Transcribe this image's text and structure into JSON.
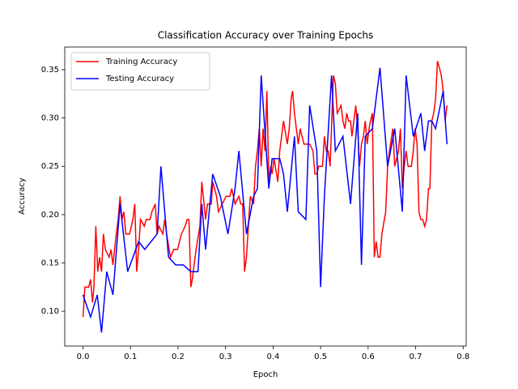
{
  "chart_data": {
    "type": "line",
    "title": "Classification Accuracy over Training Epochs",
    "x_label": "Epoch",
    "y_label": "Accuracy",
    "xlim": [
      -0.0384,
      0.8064
    ],
    "ylim": [
      0.064,
      0.3735
    ],
    "xticks": [
      {
        "value": 0,
        "label": "0.0"
      },
      0.1,
      0.2,
      0.3,
      0.4,
      0.5,
      0.6,
      0.7,
      0.8
    ],
    "yticks": [
      {
        "value": 0.1,
        "label": "0.10"
      },
      0.15,
      {
        "value": 0.2,
        "label": "0.20"
      },
      0.25,
      {
        "value": 0.3,
        "label": "0.30"
      },
      0.35
    ],
    "legend": "upper left",
    "series": [
      {
        "name": "Training Accuracy",
        "color": "#ff0000",
        "x": [
          0,
          0.004,
          0.012,
          0.016,
          0.02,
          0.023,
          0.027,
          0.031,
          0.035,
          0.039,
          0.043,
          0.047,
          0.055,
          0.059,
          0.063,
          0.07,
          0.074,
          0.078,
          0.082,
          0.086,
          0.09,
          0.098,
          0.105,
          0.109,
          0.113,
          0.117,
          0.121,
          0.129,
          0.133,
          0.141,
          0.145,
          0.152,
          0.156,
          0.16,
          0.168,
          0.172,
          0.176,
          0.184,
          0.191,
          0.199,
          0.207,
          0.215,
          0.219,
          0.223,
          0.227,
          0.23,
          0.238,
          0.246,
          0.25,
          0.258,
          0.262,
          0.27,
          0.273,
          0.281,
          0.285,
          0.293,
          0.301,
          0.309,
          0.313,
          0.32,
          0.328,
          0.332,
          0.336,
          0.34,
          0.344,
          0.348,
          0.352,
          0.359,
          0.363,
          0.367,
          0.371,
          0.375,
          0.379,
          0.383,
          0.387,
          0.391,
          0.395,
          0.398,
          0.402,
          0.41,
          0.414,
          0.418,
          0.422,
          0.43,
          0.434,
          0.438,
          0.441,
          0.445,
          0.449,
          0.453,
          0.457,
          0.465,
          0.473,
          0.477,
          0.484,
          0.488,
          0.492,
          0.496,
          0.504,
          0.508,
          0.512,
          0.516,
          0.52,
          0.527,
          0.531,
          0.535,
          0.543,
          0.547,
          0.551,
          0.555,
          0.559,
          0.563,
          0.566,
          0.574,
          0.578,
          0.582,
          0.586,
          0.59,
          0.594,
          0.598,
          0.602,
          0.605,
          0.609,
          0.613,
          0.617,
          0.621,
          0.625,
          0.629,
          0.637,
          0.641,
          0.645,
          0.652,
          0.656,
          0.664,
          0.668,
          0.672,
          0.676,
          0.68,
          0.684,
          0.691,
          0.695,
          0.699,
          0.703,
          0.707,
          0.711,
          0.715,
          0.719,
          0.723,
          0.727,
          0.73,
          0.734,
          0.738,
          0.742,
          0.746,
          0.75,
          0.754,
          0.758,
          0.762,
          0.766
        ],
        "values": [
          0.094,
          0.125,
          0.125,
          0.133,
          0.109,
          0.125,
          0.188,
          0.141,
          0.156,
          0.141,
          0.18,
          0.164,
          0.156,
          0.164,
          0.148,
          0.18,
          0.195,
          0.219,
          0.195,
          0.203,
          0.18,
          0.18,
          0.195,
          0.211,
          0.141,
          0.164,
          0.195,
          0.188,
          0.195,
          0.195,
          0.203,
          0.211,
          0.18,
          0.188,
          0.18,
          0.195,
          0.18,
          0.156,
          0.164,
          0.164,
          0.18,
          0.188,
          0.195,
          0.195,
          0.125,
          0.133,
          0.164,
          0.188,
          0.234,
          0.195,
          0.211,
          0.211,
          0.234,
          0.219,
          0.203,
          0.211,
          0.219,
          0.219,
          0.227,
          0.211,
          0.219,
          0.211,
          0.211,
          0.141,
          0.156,
          0.188,
          0.219,
          0.211,
          0.25,
          0.266,
          0.289,
          0.25,
          0.289,
          0.266,
          0.328,
          0.234,
          0.25,
          0.242,
          0.258,
          0.234,
          0.266,
          0.281,
          0.297,
          0.273,
          0.289,
          0.32,
          0.328,
          0.305,
          0.289,
          0.273,
          0.289,
          0.273,
          0.273,
          0.273,
          0.266,
          0.242,
          0.242,
          0.25,
          0.25,
          0.281,
          0.266,
          0.266,
          0.25,
          0.344,
          0.336,
          0.305,
          0.313,
          0.297,
          0.289,
          0.305,
          0.297,
          0.297,
          0.281,
          0.313,
          0.289,
          0.25,
          0.273,
          0.281,
          0.297,
          0.273,
          0.289,
          0.297,
          0.305,
          0.156,
          0.172,
          0.156,
          0.156,
          0.18,
          0.203,
          0.25,
          0.266,
          0.289,
          0.25,
          0.266,
          0.289,
          0.227,
          0.25,
          0.266,
          0.25,
          0.25,
          0.266,
          0.289,
          0.273,
          0.203,
          0.195,
          0.195,
          0.188,
          0.195,
          0.227,
          0.227,
          0.297,
          0.305,
          0.32,
          0.359,
          0.352,
          0.344,
          0.328,
          0.297,
          0.313
        ]
      },
      {
        "name": "Testing Accuracy",
        "color": "#0000ff",
        "x": [
          0,
          0.016,
          0.03,
          0.039,
          0.05,
          0.063,
          0.078,
          0.094,
          0.117,
          0.13,
          0.156,
          0.164,
          0.18,
          0.195,
          0.211,
          0.227,
          0.242,
          0.25,
          0.258,
          0.273,
          0.289,
          0.305,
          0.32,
          0.328,
          0.344,
          0.359,
          0.367,
          0.375,
          0.391,
          0.398,
          0.414,
          0.422,
          0.43,
          0.445,
          0.453,
          0.469,
          0.477,
          0.492,
          0.5,
          0.508,
          0.523,
          0.531,
          0.547,
          0.563,
          0.578,
          0.586,
          0.594,
          0.609,
          0.625,
          0.641,
          0.656,
          0.672,
          0.68,
          0.695,
          0.711,
          0.719,
          0.727,
          0.734,
          0.742,
          0.758,
          0.766
        ],
        "values": [
          0.117,
          0.094,
          0.117,
          0.078,
          0.141,
          0.117,
          0.211,
          0.141,
          0.172,
          0.164,
          0.18,
          0.25,
          0.156,
          0.148,
          0.148,
          0.141,
          0.141,
          0.211,
          0.164,
          0.242,
          0.219,
          0.18,
          0.227,
          0.266,
          0.18,
          0.219,
          0.227,
          0.344,
          0.227,
          0.258,
          0.258,
          0.242,
          0.203,
          0.281,
          0.203,
          0.195,
          0.313,
          0.266,
          0.125,
          0.219,
          0.344,
          0.266,
          0.281,
          0.211,
          0.305,
          0.148,
          0.281,
          0.289,
          0.352,
          0.25,
          0.289,
          0.203,
          0.344,
          0.281,
          0.305,
          0.266,
          0.297,
          0.297,
          0.289,
          0.328,
          0.273
        ]
      }
    ]
  }
}
